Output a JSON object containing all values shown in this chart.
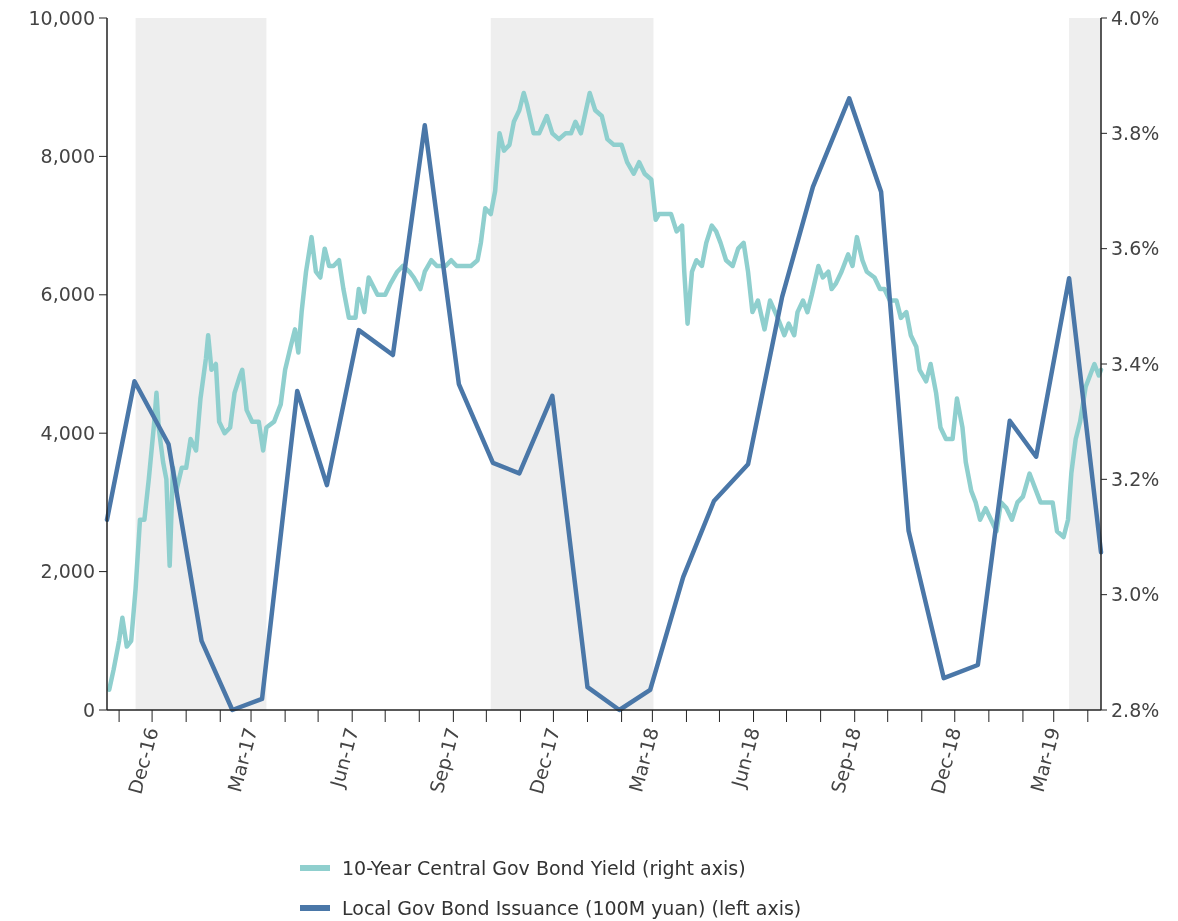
{
  "chart_data": {
    "type": "line",
    "xlim": [
      "2016-10-21",
      "2019-04-13"
    ],
    "xticks": [
      {
        "value": "2016-11-01",
        "label": null
      },
      {
        "value": "2016-12-01",
        "label": "Dec-16"
      },
      {
        "value": "2017-01-01",
        "label": null
      },
      {
        "value": "2017-02-01",
        "label": null
      },
      {
        "value": "2017-03-01",
        "label": "Mar-17"
      },
      {
        "value": "2017-04-01",
        "label": null
      },
      {
        "value": "2017-05-01",
        "label": null
      },
      {
        "value": "2017-06-01",
        "label": "Jun-17"
      },
      {
        "value": "2017-07-01",
        "label": null
      },
      {
        "value": "2017-08-01",
        "label": null
      },
      {
        "value": "2017-09-01",
        "label": "Sep-17"
      },
      {
        "value": "2017-10-01",
        "label": null
      },
      {
        "value": "2017-11-01",
        "label": null
      },
      {
        "value": "2017-12-01",
        "label": "Dec-17"
      },
      {
        "value": "2018-01-01",
        "label": null
      },
      {
        "value": "2018-02-01",
        "label": null
      },
      {
        "value": "2018-03-01",
        "label": "Mar-18"
      },
      {
        "value": "2018-04-01",
        "label": null
      },
      {
        "value": "2018-05-01",
        "label": null
      },
      {
        "value": "2018-06-01",
        "label": "Jun-18"
      },
      {
        "value": "2018-07-01",
        "label": null
      },
      {
        "value": "2018-08-01",
        "label": null
      },
      {
        "value": "2018-09-01",
        "label": "Sep-18"
      },
      {
        "value": "2018-10-01",
        "label": null
      },
      {
        "value": "2018-11-01",
        "label": null
      },
      {
        "value": "2018-12-01",
        "label": "Dec-18"
      },
      {
        "value": "2019-01-01",
        "label": null
      },
      {
        "value": "2019-02-01",
        "label": null
      },
      {
        "value": "2019-03-01",
        "label": "Mar-19"
      },
      {
        "value": "2019-04-01",
        "label": null
      }
    ],
    "ylim": [
      0,
      10000
    ],
    "yticks": [
      0,
      {
        "value": 2000,
        "label": "2,000"
      },
      {
        "value": 4000,
        "label": "4,000"
      },
      {
        "value": 6000,
        "label": "6,000"
      },
      {
        "value": 8000,
        "label": "8,000"
      },
      {
        "value": 10000,
        "label": "10,000"
      }
    ],
    "y2lim": [
      2.8,
      4.0
    ],
    "y2ticks": [
      {
        "value": 2.8,
        "label": "2.8%"
      },
      {
        "value": 3.0,
        "label": "3.0%"
      },
      {
        "value": 3.2,
        "label": "3.2%"
      },
      {
        "value": 3.4,
        "label": "3.4%"
      },
      {
        "value": 3.6,
        "label": "3.6%"
      },
      {
        "value": 3.8,
        "label": "3.8%"
      },
      {
        "value": 4.0,
        "label": "4.0%"
      }
    ],
    "grid": false,
    "legend": "bottom",
    "marker": "none",
    "line_style": "solid",
    "bands": [
      {
        "axis": "x",
        "from": "2016-11-16",
        "to": "2017-03-15",
        "color": "#eeeeee"
      },
      {
        "axis": "x",
        "from": "2017-10-05",
        "to": "2018-03-02",
        "color": "#eeeeee"
      },
      {
        "axis": "x",
        "from": "2019-03-15",
        "to": "2019-04-13",
        "color": "#eeeeee"
      }
    ],
    "series": [
      {
        "name": "10-Year Central Gov Bond Yield (right axis)",
        "color": "#8fcfce",
        "axis": "y2",
        "x": [
          "2016-10-23",
          "2016-10-27",
          "2016-11-01",
          "2016-11-04",
          "2016-11-08",
          "2016-11-12",
          "2016-11-16",
          "2016-11-20",
          "2016-11-24",
          "2016-11-28",
          "2016-12-03",
          "2016-12-05",
          "2016-12-07",
          "2016-12-11",
          "2016-12-14",
          "2016-12-17",
          "2016-12-20",
          "2016-12-23",
          "2016-12-28",
          "2017-01-01",
          "2017-01-05",
          "2017-01-10",
          "2017-01-14",
          "2017-01-19",
          "2017-01-21",
          "2017-01-24",
          "2017-01-28",
          "2017-01-31",
          "2017-02-05",
          "2017-02-10",
          "2017-02-14",
          "2017-02-19",
          "2017-02-21",
          "2017-02-25",
          "2017-03-02",
          "2017-03-08",
          "2017-03-12",
          "2017-03-15",
          "2017-03-22",
          "2017-03-28",
          "2017-04-01",
          "2017-04-06",
          "2017-04-10",
          "2017-04-13",
          "2017-04-16",
          "2017-04-20",
          "2017-04-25",
          "2017-04-29",
          "2017-05-03",
          "2017-05-07",
          "2017-05-11",
          "2017-05-15",
          "2017-05-20",
          "2017-05-24",
          "2017-05-29",
          "2017-06-04",
          "2017-06-07",
          "2017-06-12",
          "2017-06-16",
          "2017-06-24",
          "2017-07-01",
          "2017-07-06",
          "2017-07-12",
          "2017-07-17",
          "2017-07-23",
          "2017-07-27",
          "2017-08-02",
          "2017-08-06",
          "2017-08-12",
          "2017-08-17",
          "2017-08-25",
          "2017-08-30",
          "2017-09-04",
          "2017-09-12",
          "2017-09-17",
          "2017-09-23",
          "2017-09-26",
          "2017-09-30",
          "2017-10-05",
          "2017-10-09",
          "2017-10-13",
          "2017-10-17",
          "2017-10-22",
          "2017-10-26",
          "2017-10-31",
          "2017-11-04",
          "2017-11-07",
          "2017-11-13",
          "2017-11-18",
          "2017-11-25",
          "2017-11-30",
          "2017-12-06",
          "2017-12-12",
          "2017-12-17",
          "2017-12-21",
          "2017-12-26",
          "2018-01-03",
          "2018-01-08",
          "2018-01-14",
          "2018-01-19",
          "2018-01-25",
          "2018-02-01",
          "2018-02-06",
          "2018-02-12",
          "2018-02-17",
          "2018-02-22",
          "2018-02-28",
          "2018-03-04",
          "2018-03-07",
          "2018-03-12",
          "2018-03-18",
          "2018-03-23",
          "2018-03-28",
          "2018-03-30",
          "2018-04-02",
          "2018-04-06",
          "2018-04-10",
          "2018-04-15",
          "2018-04-19",
          "2018-04-24",
          "2018-04-28",
          "2018-05-02",
          "2018-05-07",
          "2018-05-13",
          "2018-05-18",
          "2018-05-23",
          "2018-05-27",
          "2018-05-31",
          "2018-06-05",
          "2018-06-11",
          "2018-06-16",
          "2018-06-23",
          "2018-06-29",
          "2018-07-03",
          "2018-07-08",
          "2018-07-11",
          "2018-07-16",
          "2018-07-20",
          "2018-07-24",
          "2018-07-30",
          "2018-08-03",
          "2018-08-08",
          "2018-08-11",
          "2018-08-15",
          "2018-08-20",
          "2018-08-26",
          "2018-08-30",
          "2018-09-03",
          "2018-09-08",
          "2018-09-12",
          "2018-09-19",
          "2018-09-24",
          "2018-09-28",
          "2018-10-03",
          "2018-10-09",
          "2018-10-13",
          "2018-10-18",
          "2018-10-22",
          "2018-10-27",
          "2018-10-30",
          "2018-11-05",
          "2018-11-09",
          "2018-11-14",
          "2018-11-18",
          "2018-11-23",
          "2018-11-29",
          "2018-12-03",
          "2018-12-08",
          "2018-12-11",
          "2018-12-16",
          "2018-12-20",
          "2018-12-24",
          "2018-12-29",
          "2019-01-03",
          "2019-01-08",
          "2019-01-12",
          "2019-01-17",
          "2019-01-22",
          "2019-01-27",
          "2019-02-01",
          "2019-02-07",
          "2019-02-11",
          "2019-02-17",
          "2019-02-22",
          "2019-02-28",
          "2019-03-04",
          "2019-03-10",
          "2019-03-14",
          "2019-03-17",
          "2019-03-21",
          "2019-03-25",
          "2019-03-30",
          "2019-04-03",
          "2019-04-07",
          "2019-04-11",
          "2019-04-13"
        ],
        "values": [
          2.835,
          2.87,
          2.92,
          2.96,
          2.91,
          2.92,
          3.01,
          3.13,
          3.13,
          3.2,
          3.3,
          3.35,
          3.29,
          3.23,
          3.2,
          3.05,
          3.22,
          3.18,
          3.22,
          3.22,
          3.27,
          3.25,
          3.34,
          3.41,
          3.45,
          3.39,
          3.4,
          3.3,
          3.28,
          3.29,
          3.35,
          3.38,
          3.39,
          3.32,
          3.3,
          3.3,
          3.25,
          3.29,
          3.3,
          3.33,
          3.39,
          3.43,
          3.46,
          3.42,
          3.49,
          3.56,
          3.62,
          3.56,
          3.55,
          3.6,
          3.57,
          3.57,
          3.58,
          3.53,
          3.48,
          3.48,
          3.53,
          3.49,
          3.55,
          3.52,
          3.52,
          3.54,
          3.56,
          3.57,
          3.56,
          3.55,
          3.53,
          3.56,
          3.58,
          3.57,
          3.57,
          3.58,
          3.57,
          3.57,
          3.57,
          3.58,
          3.61,
          3.67,
          3.66,
          3.7,
          3.8,
          3.77,
          3.78,
          3.82,
          3.84,
          3.87,
          3.85,
          3.8,
          3.8,
          3.83,
          3.8,
          3.79,
          3.8,
          3.8,
          3.82,
          3.8,
          3.87,
          3.84,
          3.83,
          3.79,
          3.78,
          3.78,
          3.75,
          3.73,
          3.75,
          3.73,
          3.72,
          3.65,
          3.66,
          3.66,
          3.66,
          3.63,
          3.64,
          3.56,
          3.47,
          3.56,
          3.58,
          3.57,
          3.61,
          3.64,
          3.63,
          3.61,
          3.58,
          3.57,
          3.6,
          3.61,
          3.56,
          3.49,
          3.51,
          3.46,
          3.51,
          3.48,
          3.45,
          3.47,
          3.45,
          3.49,
          3.51,
          3.49,
          3.52,
          3.57,
          3.55,
          3.56,
          3.53,
          3.54,
          3.56,
          3.59,
          3.57,
          3.62,
          3.58,
          3.56,
          3.55,
          3.53,
          3.53,
          3.51,
          3.51,
          3.48,
          3.49,
          3.45,
          3.43,
          3.39,
          3.37,
          3.4,
          3.35,
          3.29,
          3.27,
          3.27,
          3.34,
          3.29,
          3.23,
          3.18,
          3.16,
          3.13,
          3.15,
          3.13,
          3.11,
          3.16,
          3.15,
          3.13,
          3.16,
          3.17,
          3.21,
          3.19,
          3.16,
          3.16,
          3.16,
          3.11,
          3.1,
          3.13,
          3.21,
          3.27,
          3.3,
          3.36,
          3.38,
          3.4,
          3.38,
          3.39
        ]
      },
      {
        "name": "Local Gov Bond Issuance (100M yuan) (left axis)",
        "color": "#4a77a8",
        "x": [
          "2016-10-21",
          "2016-11-15",
          "2016-12-16",
          "2017-01-15",
          "2017-02-12",
          "2017-03-11",
          "2017-04-12",
          "2017-05-09",
          "2017-06-07",
          "2017-07-08",
          "2017-08-06",
          "2017-09-06",
          "2017-10-07",
          "2017-10-31",
          "2017-11-30",
          "2018-01-01",
          "2018-01-30",
          "2018-02-27",
          "2018-03-29",
          "2018-04-26",
          "2018-05-27",
          "2018-06-27",
          "2018-07-25",
          "2018-08-27",
          "2018-09-25",
          "2018-10-20",
          "2018-11-21",
          "2018-12-22",
          "2019-01-20",
          "2019-02-13",
          "2019-03-15",
          "2019-04-13"
        ],
        "values": [
          2750,
          4750,
          3840,
          1000,
          0,
          160,
          4610,
          3250,
          5490,
          5130,
          8450,
          4710,
          3570,
          3420,
          4540,
          330,
          0,
          290,
          1920,
          3020,
          3550,
          5970,
          7560,
          8840,
          7490,
          2590,
          460,
          650,
          4180,
          3660,
          6240,
          2280
        ]
      }
    ]
  }
}
